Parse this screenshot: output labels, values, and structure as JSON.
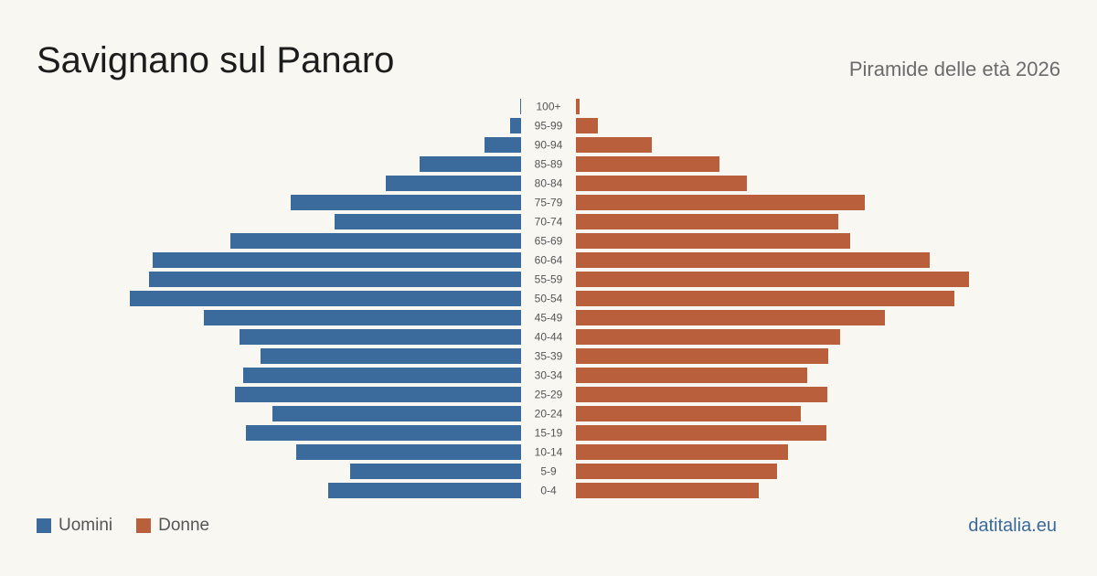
{
  "header": {
    "title": "Savignano sul Panaro",
    "subtitle": "Piramide delle età 2026"
  },
  "legend": {
    "male_label": "Uomini",
    "female_label": "Donne"
  },
  "footer": {
    "source": "datitalia.eu"
  },
  "colors": {
    "male": "#3b6a9c",
    "female": "#b95f3c",
    "background": "#f9f7f2",
    "age_label": "#555555"
  },
  "chart_data": {
    "type": "bar",
    "orientation": "horizontal-pyramid",
    "categories": [
      "100+",
      "95-99",
      "90-94",
      "85-89",
      "80-84",
      "75-79",
      "70-74",
      "65-69",
      "60-64",
      "55-59",
      "50-54",
      "45-49",
      "40-44",
      "35-39",
      "30-34",
      "25-29",
      "20-24",
      "15-19",
      "10-14",
      "5-9",
      "0-4"
    ],
    "series": [
      {
        "name": "Uomini",
        "values": [
          1,
          12,
          40,
          111,
          148,
          252,
          204,
          318,
          403,
          407,
          428,
          347,
          308,
          285,
          304,
          313,
          272,
          301,
          246,
          187,
          211
        ]
      },
      {
        "name": "Donne",
        "values": [
          4,
          24,
          83,
          157,
          187,
          316,
          287,
          300,
          387,
          430,
          414,
          338,
          289,
          276,
          253,
          275,
          246,
          274,
          232,
          220,
          200
        ]
      }
    ],
    "legend_position": "bottom-left",
    "grid": false
  }
}
